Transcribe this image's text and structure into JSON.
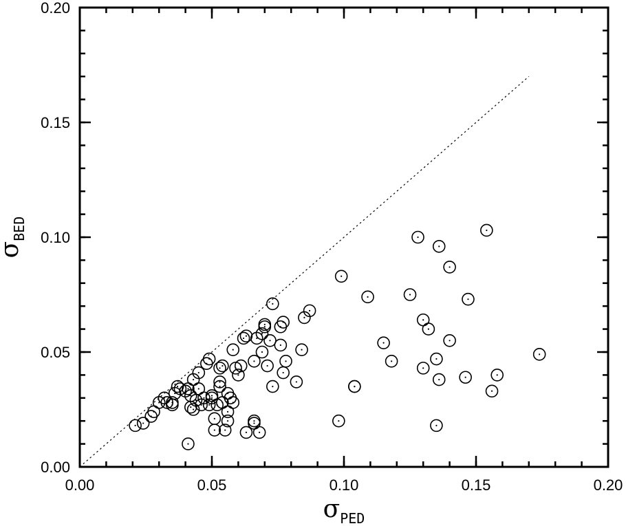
{
  "chart_data": {
    "type": "scatter",
    "xlabel": {
      "symbol": "σ",
      "subscript": "PED"
    },
    "ylabel": {
      "symbol": "σ",
      "subscript": "BED"
    },
    "xlim": [
      0.0,
      0.2
    ],
    "ylim": [
      0.0,
      0.2
    ],
    "xticks": [
      "0.00",
      "0.05",
      "0.10",
      "0.15",
      "0.20"
    ],
    "yticks": [
      "0.00",
      "0.05",
      "0.10",
      "0.15",
      "0.20"
    ],
    "xtick_values": [
      0.0,
      0.05,
      0.1,
      0.15,
      0.2
    ],
    "ytick_values": [
      0.0,
      0.05,
      0.1,
      0.15,
      0.2
    ],
    "minor_tick_step": 0.01,
    "grid": false,
    "legend": "none",
    "reference_line": {
      "style": "dotted",
      "from": [
        0.0,
        0.0
      ],
      "to": [
        0.17,
        0.17
      ]
    },
    "marker": "open circle with center dot",
    "series": [
      {
        "points": [
          [
            0.021,
            0.018
          ],
          [
            0.024,
            0.019
          ],
          [
            0.027,
            0.022
          ],
          [
            0.028,
            0.024
          ],
          [
            0.03,
            0.028
          ],
          [
            0.032,
            0.03
          ],
          [
            0.033,
            0.028
          ],
          [
            0.035,
            0.027
          ],
          [
            0.035,
            0.028
          ],
          [
            0.036,
            0.032
          ],
          [
            0.037,
            0.035
          ],
          [
            0.038,
            0.034
          ],
          [
            0.04,
            0.033
          ],
          [
            0.041,
            0.034
          ],
          [
            0.042,
            0.031
          ],
          [
            0.042,
            0.026
          ],
          [
            0.043,
            0.025
          ],
          [
            0.043,
            0.038
          ],
          [
            0.044,
            0.029
          ],
          [
            0.045,
            0.034
          ],
          [
            0.045,
            0.041
          ],
          [
            0.046,
            0.027
          ],
          [
            0.047,
            0.03
          ],
          [
            0.048,
            0.045
          ],
          [
            0.049,
            0.027
          ],
          [
            0.049,
            0.047
          ],
          [
            0.05,
            0.031
          ],
          [
            0.05,
            0.03
          ],
          [
            0.051,
            0.021
          ],
          [
            0.051,
            0.016
          ],
          [
            0.052,
            0.027
          ],
          [
            0.053,
            0.037
          ],
          [
            0.053,
            0.035
          ],
          [
            0.053,
            0.043
          ],
          [
            0.054,
            0.044
          ],
          [
            0.054,
            0.028
          ],
          [
            0.055,
            0.016
          ],
          [
            0.056,
            0.02
          ],
          [
            0.056,
            0.024
          ],
          [
            0.056,
            0.032
          ],
          [
            0.057,
            0.03
          ],
          [
            0.058,
            0.051
          ],
          [
            0.058,
            0.028
          ],
          [
            0.059,
            0.043
          ],
          [
            0.06,
            0.04
          ],
          [
            0.061,
            0.044
          ],
          [
            0.062,
            0.056
          ],
          [
            0.063,
            0.057
          ],
          [
            0.063,
            0.015
          ],
          [
            0.066,
            0.02
          ],
          [
            0.066,
            0.019
          ],
          [
            0.066,
            0.046
          ],
          [
            0.067,
            0.056
          ],
          [
            0.068,
            0.015
          ],
          [
            0.069,
            0.05
          ],
          [
            0.069,
            0.058
          ],
          [
            0.07,
            0.061
          ],
          [
            0.07,
            0.062
          ],
          [
            0.071,
            0.044
          ],
          [
            0.072,
            0.055
          ],
          [
            0.073,
            0.071
          ],
          [
            0.073,
            0.035
          ],
          [
            0.076,
            0.061
          ],
          [
            0.076,
            0.053
          ],
          [
            0.077,
            0.063
          ],
          [
            0.077,
            0.041
          ],
          [
            0.078,
            0.046
          ],
          [
            0.082,
            0.037
          ],
          [
            0.084,
            0.051
          ],
          [
            0.085,
            0.065
          ],
          [
            0.087,
            0.068
          ],
          [
            0.041,
            0.01
          ],
          [
            0.098,
            0.02
          ],
          [
            0.099,
            0.083
          ],
          [
            0.104,
            0.035
          ],
          [
            0.104,
            0.035
          ],
          [
            0.109,
            0.074
          ],
          [
            0.115,
            0.054
          ],
          [
            0.118,
            0.046
          ],
          [
            0.125,
            0.075
          ],
          [
            0.128,
            0.1
          ],
          [
            0.13,
            0.064
          ],
          [
            0.13,
            0.043
          ],
          [
            0.132,
            0.06
          ],
          [
            0.135,
            0.047
          ],
          [
            0.135,
            0.018
          ],
          [
            0.136,
            0.038
          ],
          [
            0.136,
            0.096
          ],
          [
            0.14,
            0.087
          ],
          [
            0.14,
            0.055
          ],
          [
            0.146,
            0.039
          ],
          [
            0.147,
            0.073
          ],
          [
            0.154,
            0.103
          ],
          [
            0.156,
            0.033
          ],
          [
            0.158,
            0.04
          ],
          [
            0.174,
            0.049
          ]
        ]
      }
    ]
  }
}
